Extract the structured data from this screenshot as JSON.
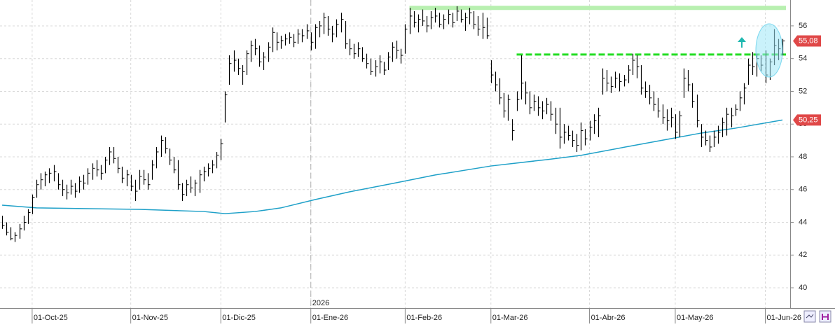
{
  "chart_data": {
    "type": "ohlc",
    "xlim": [
      -0.5,
      183.8
    ],
    "ylim": [
      38.76,
      57.58
    ],
    "yticks": [
      40,
      42,
      44,
      46,
      48,
      50,
      52,
      54,
      56
    ],
    "xticks": [
      {
        "value": 7,
        "label": "01-Oct-25"
      },
      {
        "value": 30,
        "label": "01-Nov-25"
      },
      {
        "value": 51,
        "label": "01-Dic-25"
      },
      {
        "value": 72,
        "label": "01-Ene-26"
      },
      {
        "value": 94,
        "label": "01-Feb-26"
      },
      {
        "value": 114,
        "label": "01-Mar-26"
      },
      {
        "value": 137,
        "label": "01-Abr-26"
      },
      {
        "value": 157,
        "label": "01-May-26"
      },
      {
        "value": 178,
        "label": "01-Jun-26"
      }
    ],
    "year_marker": {
      "value": 72,
      "label": "2026"
    },
    "grid": true,
    "color": "#000000",
    "bars": {
      "low": [
        43.6,
        43.2,
        42.9,
        42.8,
        43.0,
        43.5,
        43.9,
        44.5,
        45.5,
        46.0,
        46.2,
        46.4,
        46.5,
        46.0,
        45.6,
        45.4,
        45.7,
        45.5,
        45.8,
        46.0,
        46.3,
        46.6,
        46.8,
        46.6,
        47.0,
        47.5,
        47.6,
        47.0,
        46.4,
        46.2,
        45.9,
        45.3,
        46.0,
        46.3,
        46.0,
        46.6,
        47.3,
        48.0,
        48.2,
        47.5,
        47.0,
        46.0,
        45.3,
        45.6,
        45.8,
        45.6,
        45.8,
        46.5,
        46.8,
        47.0,
        47.3,
        47.8,
        50.1,
        52.4,
        53.2,
        53.0,
        52.4,
        53.0,
        53.8,
        54.2,
        53.5,
        53.3,
        53.8,
        54.4,
        54.5,
        54.6,
        54.8,
        54.9,
        54.7,
        54.9,
        55.0,
        55.2,
        54.5,
        54.6,
        55.3,
        55.5,
        55.4,
        55.0,
        55.3,
        55.6,
        54.6,
        54.2,
        54.0,
        54.1,
        53.8,
        53.4,
        53.0,
        52.9,
        53.1,
        53.0,
        53.3,
        53.8,
        54.0,
        53.7,
        54.3,
        55.5,
        55.9,
        55.6,
        56.0,
        55.6,
        55.8,
        56.2,
        55.9,
        55.8,
        56.1,
        55.9,
        56.3,
        56.2,
        55.7,
        56.1,
        55.8,
        55.4,
        55.2,
        55.2,
        52.5,
        52.0,
        51.2,
        50.4,
        50.2,
        49.0,
        50.8,
        51.5,
        51.2,
        50.6,
        50.8,
        50.5,
        50.3,
        50.6,
        50.2,
        49.4,
        48.5,
        48.8,
        49.0,
        48.6,
        48.3,
        48.4,
        48.7,
        49.0,
        49.4,
        49.2,
        51.8,
        52.0,
        51.9,
        52.2,
        52.0,
        52.3,
        52.5,
        53.0,
        52.8,
        51.8,
        51.6,
        51.2,
        50.8,
        50.4,
        50.0,
        49.6,
        49.8,
        49.1,
        49.2,
        51.6,
        52.0,
        51.0,
        49.8,
        48.6,
        48.7,
        48.3,
        48.6,
        48.8,
        49.2,
        49.3,
        49.8,
        50.5,
        50.8,
        51.2,
        52.4,
        53.0,
        52.9,
        53.2,
        52.5,
        52.7,
        53.6,
        53.9,
        54.2
      ],
      "high": [
        44.4,
        44.0,
        43.7,
        43.4,
        43.9,
        44.4,
        44.8,
        45.7,
        46.6,
        47.0,
        47.1,
        47.3,
        47.5,
        47.0,
        46.6,
        46.3,
        46.6,
        46.4,
        46.8,
        46.9,
        47.3,
        47.6,
        47.8,
        47.5,
        48.0,
        48.6,
        48.6,
        48.0,
        47.4,
        47.2,
        46.9,
        46.6,
        47.2,
        47.2,
        47.0,
        47.8,
        48.6,
        49.3,
        49.2,
        48.5,
        48.0,
        47.8,
        46.4,
        46.6,
        46.8,
        46.6,
        47.2,
        47.4,
        47.6,
        47.8,
        48.3,
        49.1,
        52.0,
        54.2,
        54.5,
        54.0,
        53.6,
        54.5,
        55.1,
        55.2,
        54.8,
        54.4,
        55.0,
        55.9,
        55.6,
        55.4,
        55.5,
        55.6,
        55.5,
        55.8,
        55.8,
        56.1,
        55.6,
        56.1,
        56.3,
        56.8,
        56.6,
        56.0,
        56.4,
        56.8,
        56.3,
        55.2,
        54.9,
        55.0,
        54.7,
        54.3,
        54.0,
        53.9,
        54.2,
        53.8,
        54.4,
        55.0,
        55.1,
        54.6,
        56.1,
        57.1,
        56.9,
        56.7,
        57.0,
        56.6,
        56.9,
        57.1,
        56.8,
        56.7,
        57.0,
        56.8,
        57.2,
        57.0,
        56.8,
        57.1,
        56.9,
        56.6,
        56.8,
        56.5,
        53.9,
        53.2,
        52.8,
        51.9,
        51.8,
        50.3,
        52.0,
        54.2,
        52.6,
        52.0,
        51.8,
        51.7,
        51.4,
        51.6,
        51.4,
        51.0,
        51.0,
        50.0,
        49.9,
        49.6,
        49.4,
        50.1,
        49.7,
        50.2,
        50.6,
        51.0,
        53.4,
        53.3,
        52.9,
        53.2,
        53.1,
        53.0,
        53.6,
        54.3,
        54.2,
        53.6,
        52.6,
        52.4,
        52.0,
        51.6,
        51.2,
        50.9,
        51.0,
        50.6,
        50.8,
        53.4,
        53.3,
        52.5,
        51.8,
        50.0,
        49.6,
        49.3,
        49.6,
        49.9,
        50.4,
        51.0,
        51.0,
        51.2,
        52.0,
        52.5,
        54.0,
        54.4,
        54.3,
        54.2,
        54.5,
        54.0,
        55.8,
        55.2,
        55.2
      ],
      "close": [
        43.8,
        43.4,
        43.0,
        43.2,
        43.6,
        44.0,
        44.6,
        45.5,
        46.3,
        46.6,
        46.9,
        47.0,
        47.1,
        46.3,
        46.0,
        45.8,
        46.2,
        45.9,
        46.5,
        46.4,
        47.0,
        47.3,
        47.2,
        47.0,
        47.8,
        48.3,
        47.9,
        47.3,
        46.7,
        46.9,
        46.2,
        45.9,
        46.8,
        46.6,
        46.3,
        47.5,
        48.3,
        49.0,
        48.5,
        47.8,
        47.2,
        46.3,
        45.7,
        46.3,
        46.1,
        46.4,
        46.9,
        47.1,
        47.3,
        47.5,
        48.1,
        48.8,
        51.8,
        53.7,
        53.9,
        53.4,
        53.2,
        54.3,
        54.8,
        54.6,
        53.8,
        54.1,
        54.7,
        55.6,
        55.0,
        55.1,
        55.2,
        55.3,
        55.0,
        55.5,
        55.4,
        55.7,
        55.0,
        55.9,
        56.0,
        56.5,
        55.8,
        55.5,
        56.1,
        56.4,
        54.9,
        54.6,
        54.3,
        54.6,
        54.0,
        53.7,
        53.2,
        53.5,
        53.8,
        53.3,
        54.1,
        54.7,
        54.5,
        54.2,
        55.8,
        56.6,
        56.2,
        56.4,
        56.3,
        56.0,
        56.5,
        56.6,
        56.1,
        56.4,
        56.7,
        56.2,
        56.9,
        56.4,
        56.5,
        56.8,
        56.1,
        55.8,
        55.9,
        55.4,
        53.0,
        52.4,
        51.6,
        50.8,
        51.5,
        49.6,
        51.5,
        52.5,
        51.9,
        51.0,
        51.4,
        51.0,
        50.8,
        51.2,
        50.6,
        50.0,
        49.2,
        49.5,
        49.3,
        49.0,
        48.7,
        49.6,
        49.1,
        49.8,
        50.2,
        50.5,
        52.8,
        52.5,
        52.3,
        52.8,
        52.6,
        52.7,
        53.3,
        53.9,
        53.5,
        52.2,
        52.0,
        51.6,
        51.2,
        50.8,
        50.4,
        50.2,
        50.4,
        49.5,
        50.5,
        52.8,
        52.4,
        51.4,
        50.2,
        49.2,
        49.0,
        48.6,
        49.2,
        49.5,
        50.1,
        50.6,
        50.5,
        50.9,
        51.6,
        52.2,
        53.6,
        53.5,
        54.0,
        53.6,
        53.0,
        53.8,
        54.8,
        54.6,
        55.08
      ]
    },
    "moving_average": {
      "color": "#1ea0c8",
      "x": [
        0,
        8,
        32,
        47,
        52,
        59,
        65,
        73,
        81,
        91,
        101,
        114,
        127,
        135,
        147,
        156,
        163,
        171,
        182
      ],
      "values": [
        45.05,
        44.88,
        44.79,
        44.66,
        44.53,
        44.66,
        44.88,
        45.39,
        45.86,
        46.37,
        46.89,
        47.44,
        47.83,
        48.09,
        48.68,
        49.11,
        49.45,
        49.75,
        50.25
      ]
    },
    "levels": [
      {
        "value": 57.1,
        "x": [
          95,
          183
        ],
        "color": "#b8f0b0",
        "style": "solid"
      },
      {
        "value": 54.25,
        "x": [
          120,
          183
        ],
        "color": "#22dd22",
        "style": "dashed"
      }
    ],
    "price_labels": [
      {
        "value": 55.08,
        "label": "55,08"
      },
      {
        "value": 50.25,
        "label": "50,25"
      }
    ]
  }
}
